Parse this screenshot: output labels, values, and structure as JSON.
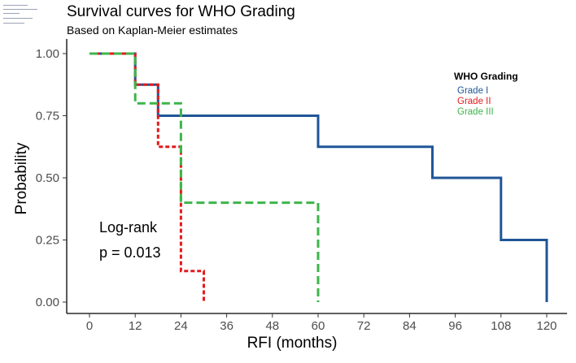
{
  "chart_data": {
    "type": "line",
    "title": "Survival curves for WHO Grading",
    "subtitle": "Based on Kaplan-Meier estimates",
    "xlabel": "RFI (months)",
    "ylabel": "Probability",
    "xlim": [
      0,
      120
    ],
    "ylim": [
      0,
      1
    ],
    "x_ticks": [
      "0",
      "12",
      "24",
      "36",
      "48",
      "60",
      "72",
      "84",
      "96",
      "108",
      "120"
    ],
    "y_ticks": [
      "0.00",
      "0.25",
      "0.50",
      "0.75",
      "1.00"
    ],
    "grid": false,
    "legend": {
      "title": "WHO  Grading",
      "position": "top-right",
      "items": [
        "Grade I",
        "Grade II",
        "Grade III"
      ]
    },
    "annotations": [
      "Log-rank",
      "p = 0.013"
    ],
    "series": [
      {
        "name": "Grade I",
        "color": "#1f5597",
        "style": "solid",
        "x": [
          0,
          12,
          18,
          60,
          90,
          108,
          120
        ],
        "y": [
          1.0,
          0.875,
          0.75,
          0.625,
          0.5,
          0.25,
          0.0
        ]
      },
      {
        "name": "Grade II",
        "color": "#e41a1c",
        "style": "dotted",
        "x": [
          0,
          12,
          18,
          24,
          30
        ],
        "y": [
          1.0,
          0.875,
          0.625,
          0.125,
          0.0
        ]
      },
      {
        "name": "Grade III",
        "color": "#3db54a",
        "style": "dashed",
        "x": [
          0,
          12,
          24,
          60
        ],
        "y": [
          1.0,
          0.8,
          0.4,
          0.0
        ]
      }
    ]
  }
}
